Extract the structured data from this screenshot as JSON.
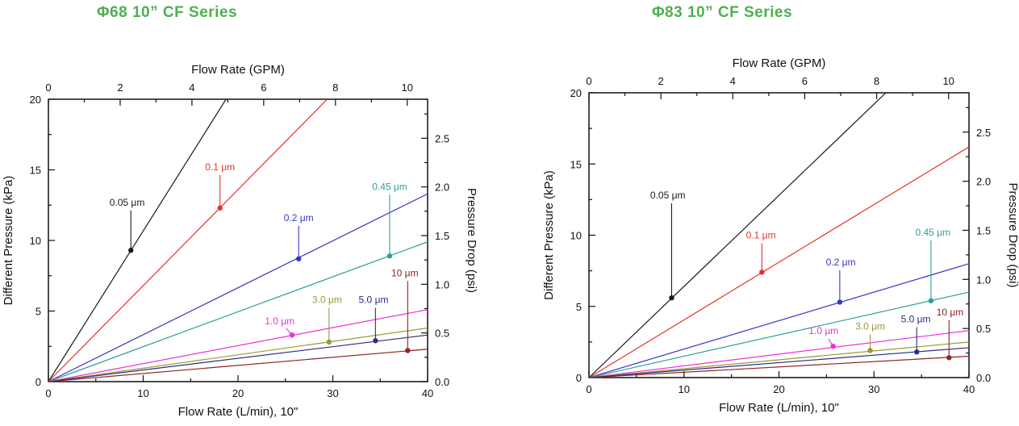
{
  "chart_data": [
    {
      "type": "line",
      "title": "Φ68 10”  CF Series",
      "title_color": "#4cb04f",
      "xlabel": "Flow Rate (L/min), 10\"",
      "top_xlabel": "Flow Rate (GPM)",
      "ylabel_left": "Different Pressure (kPa)",
      "ylabel_right": "Pressure Drop (psi)",
      "x_range_lpm": [
        0,
        40
      ],
      "y_range_kpa": [
        0,
        20
      ],
      "lpm_per_gpm": 3.785,
      "kpa_per_psi": 6.895,
      "x_ticks_lpm": {
        "values": [
          0,
          10,
          20,
          30,
          40
        ],
        "labels": [
          "0",
          "10",
          "20",
          "30",
          "40"
        ]
      },
      "x_minor_step_lpm": 5,
      "top_ticks_gpm": {
        "values": [
          0,
          2,
          4,
          6,
          8,
          10
        ],
        "labels": [
          "0",
          "2",
          "4",
          "6",
          "8",
          "10"
        ]
      },
      "top_minor_step_gpm": 1,
      "y_ticks_kpa": {
        "values": [
          0,
          5,
          10,
          15,
          20
        ],
        "labels": [
          "0",
          "5",
          "10",
          "15",
          "20"
        ]
      },
      "y_minor_step_kpa": 2.5,
      "right_ticks_psi": {
        "values": [
          0,
          0.5,
          1,
          1.5,
          2,
          2.5
        ],
        "labels": [
          "0.0",
          "0.5",
          "1.0",
          "1.5",
          "2.0",
          "2.5"
        ]
      },
      "right_minor_step_psi": 0.25,
      "series": [
        {
          "name": "0.05 μm",
          "color": "#1a1a1a",
          "kpa_at_40_lpm": 42.7,
          "marker_lpm_kpa": [
            8.7,
            9.3
          ],
          "label_pos_lpm_kpa": [
            8.3,
            12.7
          ]
        },
        {
          "name": "0.1 μm",
          "color": "#e53229",
          "kpa_at_40_lpm": 27.2,
          "marker_lpm_kpa": [
            18.1,
            12.3
          ],
          "label_pos_lpm_kpa": [
            18.1,
            15.2
          ]
        },
        {
          "name": "0.2 μm",
          "color": "#3437c8",
          "kpa_at_40_lpm": 13.3,
          "marker_lpm_kpa": [
            26.4,
            8.7
          ],
          "label_pos_lpm_kpa": [
            26.4,
            11.6
          ]
        },
        {
          "name": "0.45 μm",
          "color": "#2f9f97",
          "kpa_at_40_lpm": 9.9,
          "marker_lpm_kpa": [
            36.0,
            8.9
          ],
          "label_pos_lpm_kpa": [
            36.0,
            13.8
          ]
        },
        {
          "name": "1.0 μm",
          "color": "#ec2fd8",
          "kpa_at_40_lpm": 5.1,
          "marker_lpm_kpa": [
            25.7,
            3.3
          ],
          "label_pos_lpm_kpa": [
            24.4,
            4.3
          ]
        },
        {
          "name": "3.0 μm",
          "color": "#9a9a33",
          "kpa_at_40_lpm": 3.8,
          "marker_lpm_kpa": [
            29.6,
            2.8
          ],
          "label_pos_lpm_kpa": [
            29.4,
            5.8
          ]
        },
        {
          "name": "5.0 μm",
          "color": "#2d2d86",
          "kpa_at_40_lpm": 3.3,
          "marker_lpm_kpa": [
            34.5,
            2.9
          ],
          "label_pos_lpm_kpa": [
            34.3,
            5.8
          ]
        },
        {
          "name": "10 μm",
          "color": "#8e2424",
          "kpa_at_40_lpm": 2.3,
          "marker_lpm_kpa": [
            37.9,
            2.2
          ],
          "label_pos_lpm_kpa": [
            37.6,
            7.7
          ]
        }
      ]
    },
    {
      "type": "line",
      "title": "Φ83 10”  CF Series",
      "title_color": "#4cb04f",
      "xlabel": "Flow Rate (L/min), 10\"",
      "top_xlabel": "Flow Rate (GPM)",
      "ylabel_left": "Different Pressure (kPa)",
      "ylabel_right": "Pressure Drop (psi)",
      "x_range_lpm": [
        0,
        40
      ],
      "y_range_kpa": [
        0,
        20
      ],
      "lpm_per_gpm": 3.785,
      "kpa_per_psi": 6.895,
      "x_ticks_lpm": {
        "values": [
          0,
          10,
          20,
          30,
          40
        ],
        "labels": [
          "0",
          "10",
          "20",
          "30",
          "40"
        ]
      },
      "x_minor_step_lpm": 5,
      "top_ticks_gpm": {
        "values": [
          0,
          2,
          4,
          6,
          8,
          10
        ],
        "labels": [
          "0",
          "2",
          "4",
          "6",
          "8",
          "10"
        ]
      },
      "top_minor_step_gpm": 1,
      "y_ticks_kpa": {
        "values": [
          0,
          5,
          10,
          15,
          20
        ],
        "labels": [
          "0",
          "5",
          "10",
          "15",
          "20"
        ]
      },
      "y_minor_step_kpa": 2.5,
      "right_ticks_psi": {
        "values": [
          0,
          0.5,
          1,
          1.5,
          2,
          2.5
        ],
        "labels": [
          "0.0",
          "0.5",
          "1.0",
          "1.5",
          "2.0",
          "2.5"
        ]
      },
      "right_minor_step_psi": 0.25,
      "series": [
        {
          "name": "0.05 μm",
          "color": "#1a1a1a",
          "kpa_at_40_lpm": 25.6,
          "marker_lpm_kpa": [
            8.7,
            5.6
          ],
          "label_pos_lpm_kpa": [
            8.3,
            12.8
          ]
        },
        {
          "name": "0.1 μm",
          "color": "#e53229",
          "kpa_at_40_lpm": 16.2,
          "marker_lpm_kpa": [
            18.2,
            7.4
          ],
          "label_pos_lpm_kpa": [
            18.1,
            10.0
          ]
        },
        {
          "name": "0.2 μm",
          "color": "#3437c8",
          "kpa_at_40_lpm": 8.0,
          "marker_lpm_kpa": [
            26.4,
            5.3
          ],
          "label_pos_lpm_kpa": [
            26.5,
            8.1
          ]
        },
        {
          "name": "0.45 μm",
          "color": "#2f9f97",
          "kpa_at_40_lpm": 6.0,
          "marker_lpm_kpa": [
            36.0,
            5.4
          ],
          "label_pos_lpm_kpa": [
            36.2,
            10.2
          ]
        },
        {
          "name": "1.0 μm",
          "color": "#ec2fd8",
          "kpa_at_40_lpm": 3.3,
          "marker_lpm_kpa": [
            25.7,
            2.2
          ],
          "label_pos_lpm_kpa": [
            24.7,
            3.3
          ]
        },
        {
          "name": "3.0 μm",
          "color": "#9a9a33",
          "kpa_at_40_lpm": 2.5,
          "marker_lpm_kpa": [
            29.6,
            1.9
          ],
          "label_pos_lpm_kpa": [
            29.6,
            3.6
          ]
        },
        {
          "name": "5.0 μm",
          "color": "#2d2d86",
          "kpa_at_40_lpm": 2.1,
          "marker_lpm_kpa": [
            34.5,
            1.8
          ],
          "label_pos_lpm_kpa": [
            34.4,
            4.1
          ]
        },
        {
          "name": "10 μm",
          "color": "#8e2424",
          "kpa_at_40_lpm": 1.5,
          "marker_lpm_kpa": [
            37.9,
            1.4
          ],
          "label_pos_lpm_kpa": [
            38.0,
            4.6
          ]
        }
      ]
    }
  ]
}
